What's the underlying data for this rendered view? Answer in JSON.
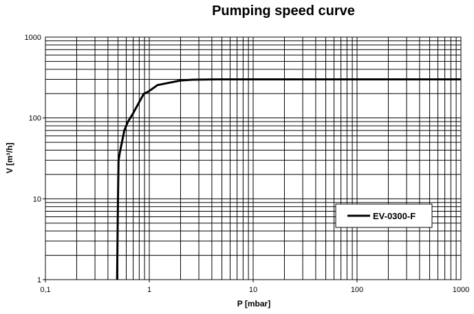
{
  "chart_data": {
    "type": "line",
    "title": "Pumping speed curve",
    "xlabel": "P [mbar]",
    "ylabel": "V [m³/h]",
    "xscale": "log",
    "yscale": "log",
    "xlim": [
      0.1,
      1000
    ],
    "ylim": [
      1,
      1000
    ],
    "xticks": [
      "0,1",
      "1",
      "10",
      "100",
      "1000"
    ],
    "yticks": [
      "1",
      "10",
      "100",
      "1000"
    ],
    "grid": true,
    "legend_position": "right-middle",
    "series": [
      {
        "name": "EV-0300-F",
        "color": "#000000",
        "x": [
          0.49,
          0.5,
          0.506,
          0.52,
          0.575,
          0.62,
          0.69,
          0.885,
          0.98,
          1.2,
          2.0,
          2.6,
          4.5,
          1000
        ],
        "y": [
          1,
          10,
          30,
          37,
          70,
          89,
          111,
          199,
          212,
          255,
          291,
          297,
          300,
          300
        ]
      }
    ]
  }
}
